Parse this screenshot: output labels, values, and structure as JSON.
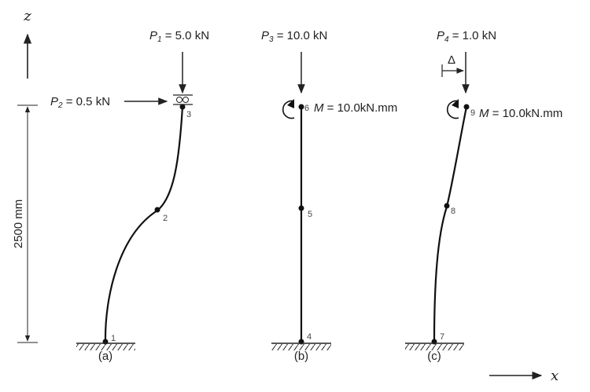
{
  "axes": {
    "z": "z",
    "x": "x"
  },
  "dimension": {
    "length": "2500 mm"
  },
  "panels": [
    {
      "caption": "(a)",
      "loads": [
        {
          "symbol": "P",
          "sub": "1",
          "text": " = 5.0 kN"
        },
        {
          "symbol": "P",
          "sub": "2",
          "text": " = 0.5 kN"
        }
      ],
      "nodes": [
        "1",
        "2",
        "3"
      ]
    },
    {
      "caption": "(b)",
      "loads": [
        {
          "symbol": "P",
          "sub": "3",
          "text": " = 10.0 kN"
        }
      ],
      "moment": {
        "symbol": "M",
        "text": " = 10.0kN.mm"
      },
      "nodes": [
        "4",
        "5",
        "6"
      ]
    },
    {
      "caption": "(c)",
      "loads": [
        {
          "symbol": "P",
          "sub": "4",
          "text": " = 1.0 kN"
        }
      ],
      "moment": {
        "symbol": "M",
        "text": " = 10.0kN.mm"
      },
      "imperfection": "Δ",
      "nodes": [
        "7",
        "8",
        "9"
      ]
    }
  ]
}
